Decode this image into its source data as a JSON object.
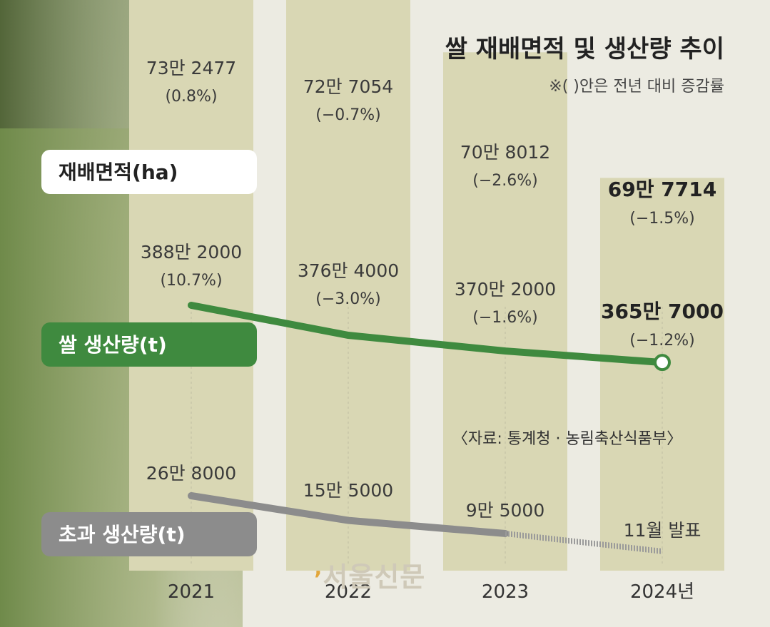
{
  "chart_data": {
    "type": "bar",
    "title": "쌀 재배면적 및 생산량 추이",
    "note": "※(  )안은 전년 대비 증감률",
    "source": "〈자료: 통계청 · 농림축산식품부〉",
    "categories": [
      "2021",
      "2022",
      "2023",
      "2024년"
    ],
    "series": [
      {
        "name": "재배면적(ha)",
        "kind": "bar",
        "values": [
          732477,
          727054,
          708012,
          697714
        ],
        "value_labels": [
          "73만 2477",
          "72만 7054",
          "70만 8012",
          "69만 7714"
        ],
        "change_labels": [
          "(0.8%)",
          "(−0.7%)",
          "(−2.6%)",
          "(−1.5%)"
        ]
      },
      {
        "name": "쌀 생산량(t)",
        "kind": "line",
        "values": [
          3882000,
          3764000,
          3702000,
          3657000
        ],
        "value_labels": [
          "388만 2000",
          "376만 4000",
          "370만 2000",
          "365만 7000"
        ],
        "change_labels": [
          "(10.7%)",
          "(−3.0%)",
          "(−1.6%)",
          "(−1.2%)"
        ]
      },
      {
        "name": "초과 생산량(t)",
        "kind": "line",
        "values": [
          268000,
          155000,
          95000,
          null
        ],
        "value_labels": [
          "26만 8000",
          "15만 5000",
          "9만 5000",
          "11월 발표"
        ]
      }
    ],
    "legend": "left"
  },
  "watermark": "서울신문",
  "colors": {
    "bar": "#d9d7b4",
    "production_line": "#3f8a3f",
    "surplus_line": "#8c8c8c",
    "area_legend_bg": "#ffffff",
    "production_legend_bg": "#3f8a3f",
    "surplus_legend_bg": "#8c8c8c"
  }
}
